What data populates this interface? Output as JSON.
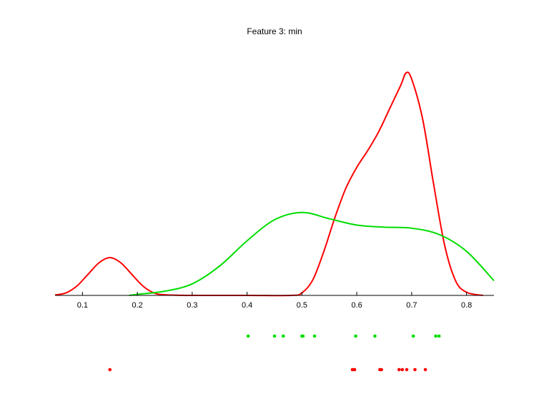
{
  "chart_data": {
    "type": "line",
    "title": "Feature 3: min",
    "xlabel": "",
    "ylabel": "",
    "xlim": [
      0.05,
      0.85
    ],
    "ylim": [
      0,
      10.6
    ],
    "xticks": [
      0.1,
      0.2,
      0.3,
      0.4,
      0.5,
      0.6,
      0.7,
      0.8
    ],
    "xtick_labels": [
      "0.1",
      "0.2",
      "0.3",
      "0.4",
      "0.5",
      "0.6",
      "0.7",
      "0.8"
    ],
    "grid": false,
    "series": [
      {
        "color": "#ff0000",
        "x": [
          0.05,
          0.07,
          0.09,
          0.11,
          0.13,
          0.15,
          0.17,
          0.19,
          0.21,
          0.23,
          0.25,
          0.3,
          0.4,
          0.48,
          0.5,
          0.52,
          0.54,
          0.56,
          0.58,
          0.6,
          0.62,
          0.64,
          0.66,
          0.68,
          0.69,
          0.7,
          0.72,
          0.74,
          0.76,
          0.78,
          0.8,
          0.83
        ],
        "y": [
          0.02,
          0.12,
          0.45,
          1.0,
          1.55,
          1.8,
          1.55,
          1.0,
          0.45,
          0.12,
          0.03,
          0.0,
          0.0,
          0.0,
          0.12,
          0.75,
          2.1,
          3.7,
          5.1,
          6.1,
          6.9,
          7.8,
          8.9,
          10.0,
          10.6,
          10.3,
          8.4,
          5.3,
          2.4,
          0.7,
          0.15,
          0.0
        ]
      },
      {
        "color": "#00dd00",
        "x": [
          0.185,
          0.2,
          0.25,
          0.3,
          0.35,
          0.4,
          0.45,
          0.5,
          0.55,
          0.6,
          0.65,
          0.7,
          0.75,
          0.8,
          0.85
        ],
        "y": [
          0.0,
          0.05,
          0.2,
          0.55,
          1.4,
          2.6,
          3.6,
          3.95,
          3.65,
          3.35,
          3.25,
          3.2,
          2.9,
          2.1,
          0.7
        ]
      }
    ],
    "rug": [
      {
        "color": "#00dd00",
        "x": [
          0.402,
          0.45,
          0.466,
          0.5,
          0.502,
          0.523,
          0.598,
          0.633,
          0.703,
          0.744,
          0.75
        ]
      },
      {
        "color": "#ff0000",
        "x": [
          0.15,
          0.592,
          0.596,
          0.642,
          0.645,
          0.677,
          0.683,
          0.691,
          0.706,
          0.725
        ]
      }
    ]
  }
}
